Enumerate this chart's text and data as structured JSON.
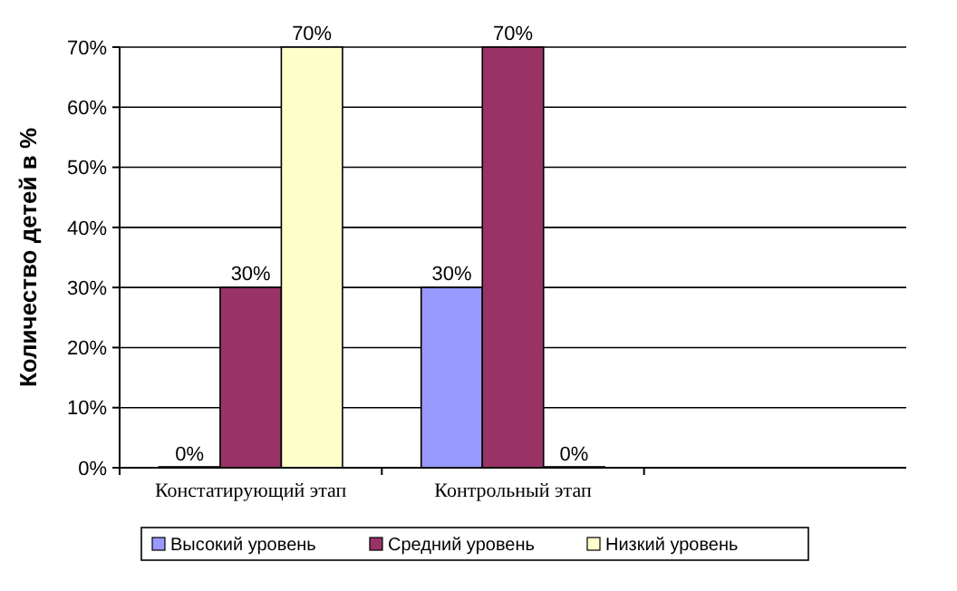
{
  "chart_data": {
    "type": "bar",
    "ylabel": "Количество детей в %",
    "categories": [
      "Констатирующий этап",
      "Контрольный этап",
      null
    ],
    "series": [
      {
        "name": "Высокий уровень",
        "color": "#9999ff",
        "values": [
          0,
          30,
          null
        ],
        "value_labels": [
          "0%",
          "30%",
          null
        ]
      },
      {
        "name": "Средний уровень",
        "color": "#993366",
        "values": [
          30,
          70,
          null
        ],
        "value_labels": [
          "30%",
          "70%",
          null
        ]
      },
      {
        "name": "Низкий уровень",
        "color": "#ffffcc",
        "values": [
          70,
          0,
          null
        ],
        "value_labels": [
          "70%",
          "0%",
          null
        ]
      }
    ],
    "ylim": [
      0,
      70
    ],
    "yticks": [
      {
        "value": 0,
        "label": "0%"
      },
      {
        "value": 10,
        "label": "10%"
      },
      {
        "value": 20,
        "label": "20%"
      },
      {
        "value": 30,
        "label": "30%"
      },
      {
        "value": 40,
        "label": "40%"
      },
      {
        "value": 50,
        "label": "50%"
      },
      {
        "value": 60,
        "label": "60%"
      },
      {
        "value": 70,
        "label": "70%"
      }
    ],
    "grid": "y",
    "legend": "bottom"
  }
}
